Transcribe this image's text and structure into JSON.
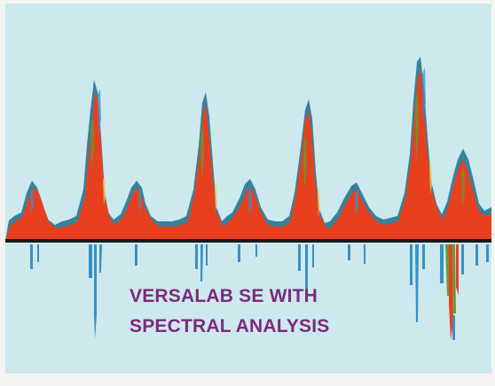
{
  "caption": {
    "line1": "VERSALAB SE WITH",
    "line2": "SPECTRAL ANALYSIS"
  },
  "colors": {
    "background": "#cde9ee",
    "peak_fill": "#e8401f",
    "peak_edge": "#1b6f8f",
    "speckle_green": "#5e9e3a",
    "speckle_blue": "#3b8fc4",
    "baseline": "#1a1a1a",
    "caption": "#7b2a7a"
  }
}
